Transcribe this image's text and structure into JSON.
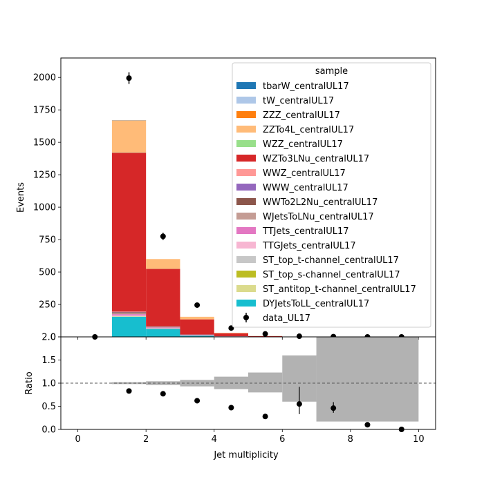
{
  "chart_data": {
    "type": "bar",
    "stacked": true,
    "xlabel": "Jet multiplicity",
    "ylabel_top": "Events",
    "ylabel_ratio": "Ratio",
    "xlim": [
      -0.5,
      10.5
    ],
    "ylim_top": [
      0,
      2150
    ],
    "ylim_ratio": [
      0,
      2.0
    ],
    "bin_edges": [
      0,
      1,
      2,
      3,
      4,
      5,
      6,
      7,
      8,
      9,
      10
    ],
    "xticks": [
      "0",
      "2",
      "4",
      "6",
      "8",
      "10"
    ],
    "yticks_top": [
      "0",
      "250",
      "500",
      "750",
      "1000",
      "1250",
      "1500",
      "1750",
      "2000"
    ],
    "yticks_ratio": [
      "0.0",
      "0.5",
      "1.0",
      "1.5",
      "2.0"
    ],
    "legend_title": "sample",
    "legend_location": "top-right",
    "series": [
      {
        "name": "DYJetsToLL_centralUL17",
        "color": "#17becf",
        "values": [
          0,
          155,
          62,
          10,
          3,
          1,
          0,
          0,
          0,
          0
        ]
      },
      {
        "name": "ST_antitop_t-channel_centralUL17",
        "color": "#dbdb8d",
        "values": [
          0,
          2,
          1,
          0,
          0,
          0,
          0,
          0,
          0,
          0
        ]
      },
      {
        "name": "ST_top_s-channel_centralUL17",
        "color": "#bcbd22",
        "values": [
          0,
          1,
          1,
          0,
          0,
          0,
          0,
          0,
          0,
          0
        ]
      },
      {
        "name": "ST_top_t-channel_centralUL17",
        "color": "#c7c7c7",
        "values": [
          0,
          3,
          1,
          0,
          0,
          0,
          0,
          0,
          0,
          0
        ]
      },
      {
        "name": "TTGJets_centralUL17",
        "color": "#f7b6d2",
        "values": [
          0,
          4,
          2,
          1,
          0,
          0,
          0,
          0,
          0,
          0
        ]
      },
      {
        "name": "TTJets_centralUL17",
        "color": "#e377c2",
        "values": [
          0,
          10,
          6,
          3,
          1,
          0,
          0,
          0,
          0,
          0
        ]
      },
      {
        "name": "WJetsToLNu_centralUL17",
        "color": "#c49c94",
        "values": [
          0,
          8,
          4,
          2,
          1,
          0,
          0,
          0,
          0,
          0
        ]
      },
      {
        "name": "WWTo2L2Nu_centralUL17",
        "color": "#8c564b",
        "values": [
          0,
          7,
          3,
          1,
          0,
          0,
          0,
          0,
          0,
          0
        ]
      },
      {
        "name": "WWW_centralUL17",
        "color": "#9467bd",
        "values": [
          0,
          3,
          1,
          1,
          0,
          0,
          0,
          0,
          0,
          0
        ]
      },
      {
        "name": "WWZ_centralUL17",
        "color": "#ff9896",
        "values": [
          0,
          2,
          1,
          0,
          0,
          0,
          0,
          0,
          0,
          0
        ]
      },
      {
        "name": "WZTo3LNu_centralUL17",
        "color": "#d62728",
        "values": [
          0,
          1225,
          442,
          117,
          23,
          5,
          1,
          0,
          0,
          0
        ]
      },
      {
        "name": "WZZ_centralUL17",
        "color": "#98df8a",
        "values": [
          0,
          2,
          1,
          0,
          0,
          0,
          0,
          0,
          0,
          0
        ]
      },
      {
        "name": "ZZTo4L_centralUL17",
        "color": "#ffbb78",
        "values": [
          0,
          246,
          75,
          20,
          4,
          1,
          0,
          0,
          0,
          0
        ]
      },
      {
        "name": "ZZZ_centralUL17",
        "color": "#ff7f0e",
        "values": [
          0,
          1,
          0,
          0,
          0,
          0,
          0,
          0,
          0,
          0
        ]
      },
      {
        "name": "tW_centralUL17",
        "color": "#aec7e8",
        "values": [
          0,
          1,
          0,
          0,
          0,
          0,
          0,
          0,
          0,
          0
        ]
      },
      {
        "name": "tbarW_centralUL17",
        "color": "#1f77b4",
        "values": [
          0,
          1,
          0,
          0,
          0,
          0,
          0,
          0,
          0,
          0
        ]
      }
    ],
    "data": {
      "name": "data_UL17",
      "color": "#000000",
      "x": [
        0.5,
        1.5,
        2.5,
        3.5,
        4.5,
        5.5,
        6.5,
        7.5,
        8.5,
        9.5
      ],
      "y": [
        0,
        1995,
        775,
        245,
        68,
        23,
        5,
        2,
        0,
        0
      ],
      "yerr": [
        0,
        45,
        28,
        16,
        8,
        5,
        2,
        1.5,
        0,
        0
      ]
    },
    "ratio": {
      "x": [
        0.5,
        1.5,
        2.5,
        3.5,
        4.5,
        5.5,
        6.5,
        7.5,
        8.5,
        9.5
      ],
      "y": [
        null,
        0.83,
        0.77,
        0.62,
        0.47,
        0.28,
        0.55,
        0.46,
        0.1,
        0.0
      ],
      "yerr_low": [
        0,
        0,
        0,
        0,
        0,
        0,
        0.22,
        0.1,
        0,
        0
      ],
      "yerr_high": [
        0,
        0,
        0,
        0,
        0,
        0,
        0.37,
        0.13,
        0,
        0
      ],
      "reference_line": 1.0,
      "uncertainty_band_color": "#b2b2b2",
      "uncertainty_band": [
        {
          "x0": 1,
          "x1": 2,
          "low": 0.98,
          "high": 1.02
        },
        {
          "x0": 2,
          "x1": 3,
          "low": 0.96,
          "high": 1.04
        },
        {
          "x0": 3,
          "x1": 4,
          "low": 0.93,
          "high": 1.07
        },
        {
          "x0": 4,
          "x1": 5,
          "low": 0.87,
          "high": 1.14
        },
        {
          "x0": 5,
          "x1": 6,
          "low": 0.8,
          "high": 1.23
        },
        {
          "x0": 6,
          "x1": 7,
          "low": 0.6,
          "high": 1.6
        },
        {
          "x0": 7,
          "x1": 10,
          "low": 0.17,
          "high": 2.0
        }
      ]
    }
  }
}
